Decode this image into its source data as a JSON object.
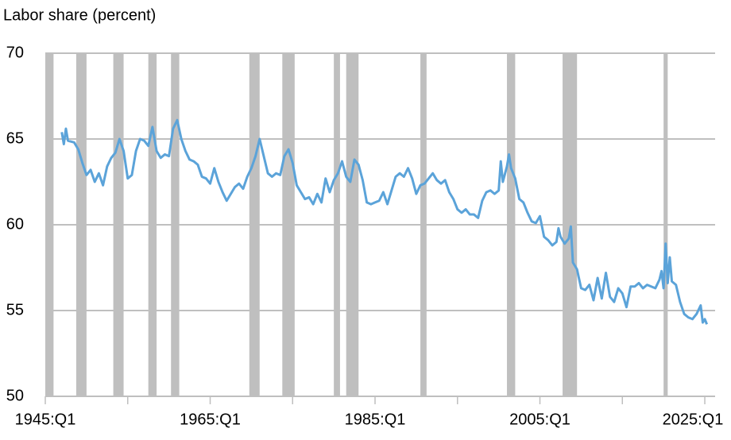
{
  "chart_data": {
    "type": "line",
    "title": "Labor share (percent)",
    "x": [
      "1947:Q1",
      "1947:Q2",
      "1947:Q3",
      "1947:Q4",
      "1948:Q3",
      "1949:Q1",
      "1949:Q3",
      "1950:Q1",
      "1950:Q3",
      "1951:Q1",
      "1951:Q3",
      "1952:Q1",
      "1952:Q3",
      "1953:Q1",
      "1953:Q3",
      "1954:Q1",
      "1954:Q3",
      "1955:Q1",
      "1955:Q3",
      "1956:Q1",
      "1956:Q3",
      "1957:Q1",
      "1957:Q3",
      "1958:Q1",
      "1958:Q3",
      "1959:Q1",
      "1959:Q3",
      "1960:Q1",
      "1960:Q3",
      "1961:Q1",
      "1961:Q3",
      "1962:Q1",
      "1962:Q3",
      "1963:Q1",
      "1963:Q3",
      "1964:Q1",
      "1964:Q3",
      "1965:Q1",
      "1965:Q3",
      "1966:Q1",
      "1966:Q3",
      "1967:Q1",
      "1967:Q3",
      "1968:Q1",
      "1968:Q3",
      "1969:Q1",
      "1969:Q3",
      "1970:Q1",
      "1970:Q3",
      "1971:Q1",
      "1971:Q3",
      "1972:Q1",
      "1972:Q3",
      "1973:Q1",
      "1973:Q3",
      "1974:Q1",
      "1974:Q3",
      "1975:Q1",
      "1975:Q3",
      "1976:Q1",
      "1976:Q3",
      "1977:Q1",
      "1977:Q3",
      "1978:Q1",
      "1978:Q3",
      "1979:Q1",
      "1979:Q3",
      "1980:Q1",
      "1980:Q3",
      "1981:Q1",
      "1981:Q3",
      "1982:Q1",
      "1982:Q3",
      "1983:Q1",
      "1983:Q3",
      "1984:Q1",
      "1984:Q3",
      "1985:Q1",
      "1985:Q3",
      "1986:Q1",
      "1986:Q3",
      "1987:Q1",
      "1987:Q3",
      "1988:Q1",
      "1988:Q3",
      "1989:Q1",
      "1989:Q3",
      "1990:Q1",
      "1990:Q3",
      "1991:Q1",
      "1991:Q3",
      "1992:Q1",
      "1992:Q3",
      "1993:Q1",
      "1993:Q3",
      "1994:Q1",
      "1994:Q3",
      "1995:Q1",
      "1995:Q3",
      "1996:Q1",
      "1996:Q3",
      "1997:Q1",
      "1997:Q3",
      "1998:Q1",
      "1998:Q3",
      "1999:Q1",
      "1999:Q3",
      "2000:Q1",
      "2000:Q2",
      "2000:Q3",
      "2001:Q1",
      "2001:Q2",
      "2001:Q3",
      "2002:Q1",
      "2002:Q3",
      "2003:Q1",
      "2003:Q3",
      "2004:Q1",
      "2004:Q3",
      "2005:Q1",
      "2005:Q3",
      "2006:Q1",
      "2006:Q3",
      "2007:Q1",
      "2007:Q2",
      "2007:Q3",
      "2008:Q1",
      "2008:Q3",
      "2008:Q4",
      "2009:Q1",
      "2009:Q3",
      "2010:Q1",
      "2010:Q3",
      "2011:Q1",
      "2011:Q3",
      "2012:Q1",
      "2012:Q3",
      "2013:Q1",
      "2013:Q3",
      "2014:Q1",
      "2014:Q3",
      "2015:Q1",
      "2015:Q3",
      "2016:Q1",
      "2016:Q3",
      "2017:Q1",
      "2017:Q3",
      "2018:Q1",
      "2018:Q3",
      "2019:Q1",
      "2019:Q3",
      "2019:Q4",
      "2020:Q1",
      "2020:Q2",
      "2020:Q3",
      "2020:Q4",
      "2021:Q1",
      "2021:Q3",
      "2022:Q1",
      "2022:Q3",
      "2023:Q1",
      "2023:Q3",
      "2024:Q1",
      "2024:Q3",
      "2024:Q4",
      "2025:Q1",
      "2025:Q2"
    ],
    "series": [
      {
        "color": "#5ba3d9",
        "values": [
          65.4,
          64.7,
          65.6,
          64.9,
          64.8,
          64.4,
          63.6,
          62.9,
          63.2,
          62.5,
          63.0,
          62.3,
          63.4,
          63.9,
          64.2,
          65.0,
          64.3,
          62.7,
          62.9,
          64.3,
          65.0,
          64.9,
          64.6,
          65.7,
          64.3,
          63.9,
          64.1,
          64.0,
          65.6,
          66.1,
          65.0,
          64.3,
          63.8,
          63.7,
          63.5,
          62.8,
          62.7,
          62.4,
          63.3,
          62.5,
          61.9,
          61.4,
          61.8,
          62.2,
          62.4,
          62.1,
          62.8,
          63.3,
          64.0,
          65.0,
          64.0,
          63.0,
          62.8,
          63.0,
          62.9,
          64.0,
          64.4,
          63.6,
          62.3,
          61.9,
          61.5,
          61.6,
          61.2,
          61.8,
          61.3,
          62.7,
          61.9,
          62.6,
          63.0,
          63.7,
          62.8,
          62.5,
          63.8,
          63.5,
          62.6,
          61.3,
          61.2,
          61.3,
          61.4,
          61.9,
          61.2,
          62.0,
          62.8,
          63.0,
          62.8,
          63.3,
          62.7,
          61.8,
          62.3,
          62.4,
          62.7,
          63.0,
          62.6,
          62.4,
          62.6,
          61.9,
          61.5,
          60.9,
          60.7,
          60.9,
          60.6,
          60.6,
          60.4,
          61.4,
          61.9,
          62.0,
          61.8,
          62.0,
          63.7,
          62.5,
          63.4,
          64.1,
          63.3,
          62.7,
          61.5,
          61.3,
          60.7,
          60.2,
          60.1,
          60.5,
          59.3,
          59.1,
          58.8,
          59.0,
          59.8,
          59.3,
          58.9,
          59.2,
          59.9,
          57.8,
          57.4,
          56.3,
          56.2,
          56.5,
          55.6,
          56.9,
          55.7,
          57.2,
          55.8,
          55.5,
          56.3,
          56.0,
          55.2,
          56.4,
          56.4,
          56.6,
          56.3,
          56.5,
          56.4,
          56.3,
          56.8,
          57.3,
          56.3,
          58.9,
          56.6,
          58.1,
          56.7,
          56.5,
          55.5,
          54.8,
          54.6,
          54.5,
          54.8,
          55.3,
          54.3,
          54.5,
          54.2
        ]
      }
    ],
    "xlim": [
      "1945:Q1",
      "2026:Q2"
    ],
    "xticks": [
      "1945:Q1",
      "1965:Q1",
      "1985:Q1",
      "2005:Q1",
      "2025:Q1"
    ],
    "x_minor_ticks": [
      "1955:Q1",
      "1975:Q1",
      "1995:Q1",
      "2015:Q1"
    ],
    "ylim": [
      50,
      70
    ],
    "yticks": [
      50,
      55,
      60,
      65,
      70
    ],
    "grid": true,
    "shaded_periods": {
      "color": "#bfbfbf",
      "periods": [
        [
          "1945:Q1",
          "1945:Q4"
        ],
        [
          "1948:Q4",
          "1949:Q4"
        ],
        [
          "1953:Q2",
          "1954:Q2"
        ],
        [
          "1957:Q3",
          "1958:Q2"
        ],
        [
          "1960:Q2",
          "1961:Q1"
        ],
        [
          "1969:Q4",
          "1970:Q4"
        ],
        [
          "1973:Q4",
          "1975:Q1"
        ],
        [
          "1980:Q1",
          "1980:Q3"
        ],
        [
          "1981:Q3",
          "1982:Q4"
        ],
        [
          "1990:Q3",
          "1991:Q1"
        ],
        [
          "2001:Q1",
          "2001:Q4"
        ],
        [
          "2007:Q4",
          "2009:Q2"
        ],
        [
          "2020:Q1",
          "2020:Q2"
        ]
      ]
    }
  }
}
